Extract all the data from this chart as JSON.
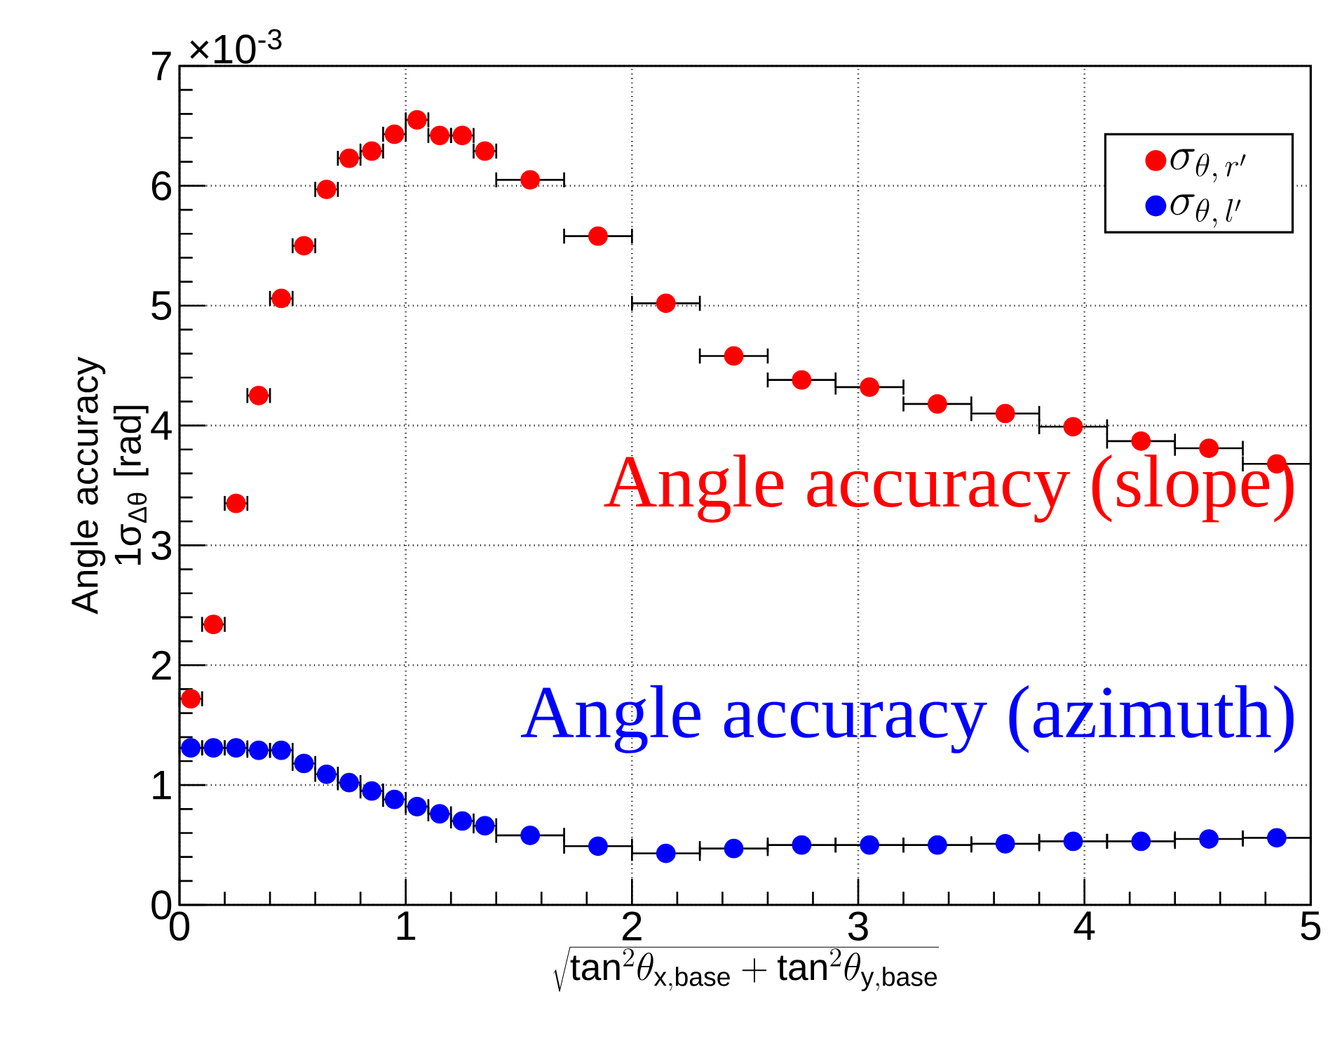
{
  "chart_data": {
    "type": "scatter",
    "xlabel": "\\sqrt{\\mathrm{tan}^{2}\\theta_{\\mathrm{x,base}} + \\mathrm{tan}^{2}\\theta_{\\mathrm{y,base}}}",
    "ylabel": "Angle accuracy 1σ$_{Δθ}$ [rad]",
    "x": [
      0.05,
      0.15,
      0.25,
      0.35,
      0.45,
      0.55,
      0.65,
      0.75,
      0.85,
      0.95,
      1.05,
      1.15,
      1.25,
      1.35,
      1.55,
      1.85,
      2.15,
      2.45,
      2.75,
      3.05,
      3.35,
      3.65,
      3.95,
      4.25,
      4.55,
      4.85
    ],
    "series": [
      {
        "name": "\\sigma_{\\theta,\\, r'}",
        "color": "#ff0000",
        "xerrors": [
          0.05,
          0.05,
          0.05,
          0.05,
          0.05,
          0.05,
          0.05,
          0.05,
          0.05,
          0.05,
          0.05,
          0.05,
          0.05,
          0.05,
          0.15,
          0.15,
          0.15,
          0.15,
          0.15,
          0.15,
          0.15,
          0.15,
          0.15,
          0.15,
          0.15,
          0.15
        ],
        "values": [
          1.72,
          2.34,
          3.35,
          4.25,
          5.06,
          5.5,
          5.97,
          6.23,
          6.29,
          6.43,
          6.55,
          6.42,
          6.42,
          6.29,
          6.05,
          5.58,
          5.02,
          4.58,
          4.38,
          4.32,
          4.18,
          4.1,
          3.99,
          3.87,
          3.81,
          3.68
        ]
      },
      {
        "name": "\\sigma_{\\theta,\\, l'}",
        "color": "#0000ff",
        "xerrors": [
          0.05,
          0.05,
          0.05,
          0.05,
          0.05,
          0.05,
          0.05,
          0.05,
          0.05,
          0.05,
          0.05,
          0.05,
          0.05,
          0.05,
          0.15,
          0.15,
          0.15,
          0.15,
          0.15,
          0.15,
          0.15,
          0.15,
          0.15,
          0.15,
          0.15,
          0.15
        ],
        "values": [
          1.31,
          1.31,
          1.31,
          1.29,
          1.29,
          1.18,
          1.09,
          1.02,
          0.95,
          0.88,
          0.82,
          0.76,
          0.7,
          0.66,
          0.58,
          0.49,
          0.43,
          0.47,
          0.5,
          0.5,
          0.5,
          0.51,
          0.53,
          0.53,
          0.55,
          0.56
        ]
      }
    ],
    "xlim": [
      0,
      5
    ],
    "ylim": [
      0,
      7
    ],
    "xticks": [
      0,
      1,
      2,
      3,
      4,
      5
    ],
    "yticks": [
      0,
      1,
      2,
      3,
      4,
      5,
      6,
      7
    ],
    "grid": true,
    "legend": "top right",
    "marker": "circle",
    "annotations": [
      "×10$^{-3}$",
      "Angle accuracy (slope)",
      "Angle accuracy (azimuth)"
    ]
  }
}
